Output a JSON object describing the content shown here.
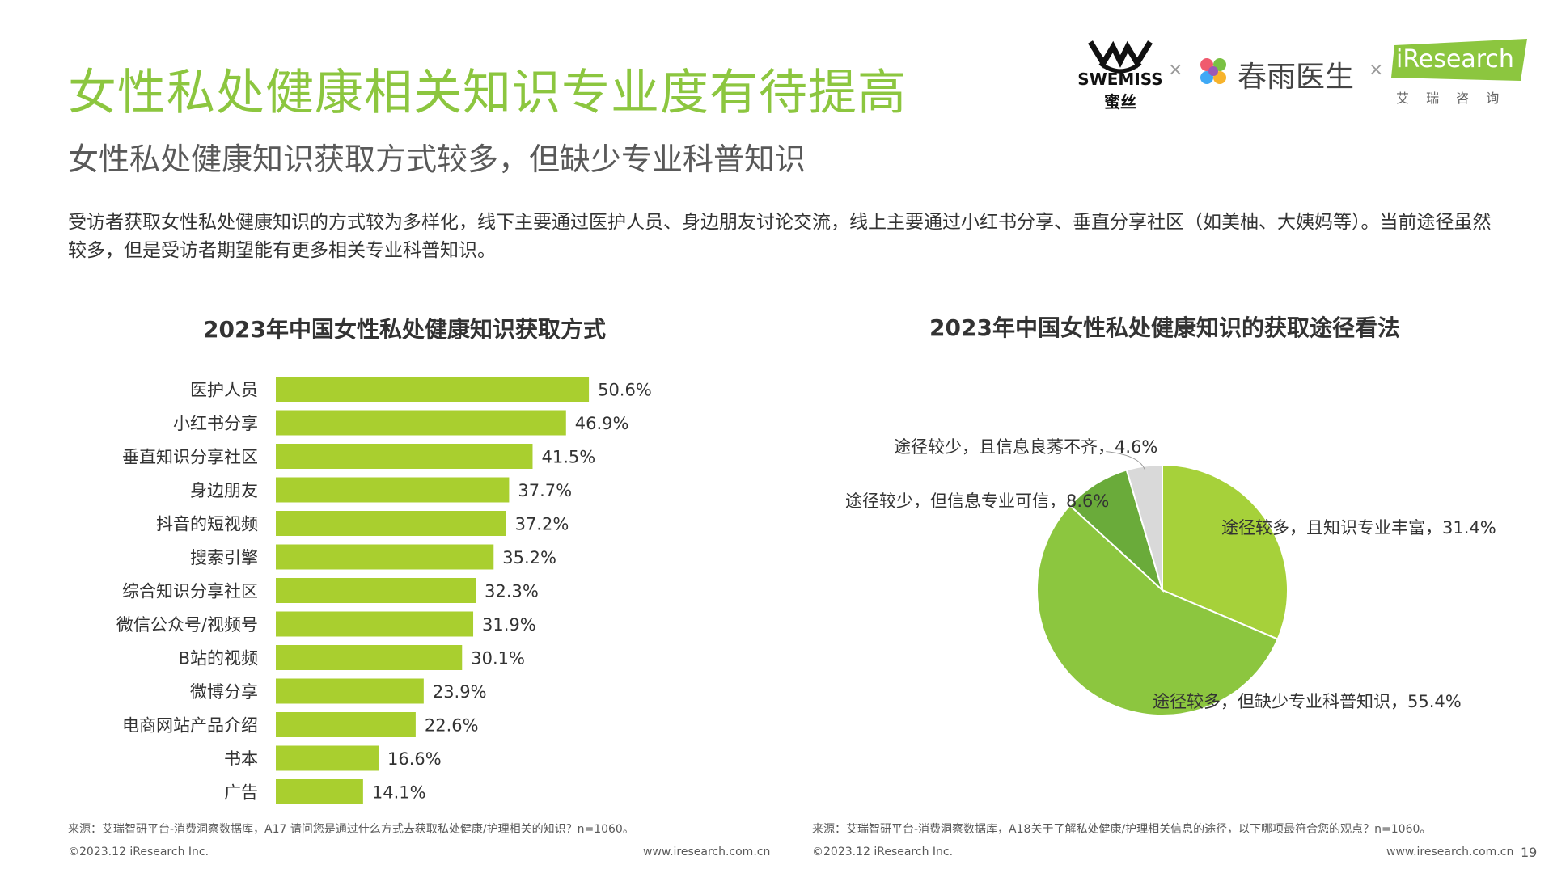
{
  "header": {
    "title": "女性私处健康相关知识专业度有待提高",
    "subtitle": "女性私处健康知识获取方式较多，但缺少专业科普知识",
    "description": "受访者获取女性私处健康知识的方式较为多样化，线下主要通过医护人员、身边朋友讨论交流，线上主要通过小红书分享、垂直分享社区（如美柚、大姨妈等）。当前途径虽然较多，但是受访者期望能有更多相关专业科普知识。"
  },
  "logos": {
    "swemiss_text": "SWEMISS",
    "swemiss_cn": "蜜丝",
    "chunyu_text": "春雨医生",
    "iresearch_text": "iResearch",
    "iresearch_cn": "艾 瑞 咨 询",
    "cross": "×"
  },
  "colors": {
    "accent": "#8cc63f",
    "bar": "#a9cf2f",
    "pie_light": "#a6d13a",
    "pie_main": "#8cc63f",
    "pie_dark": "#6aab3a",
    "pie_gray": "#d9d9d9"
  },
  "chart_data": [
    {
      "type": "bar",
      "orientation": "horizontal",
      "title": "2023年中国女性私处健康知识获取方式",
      "categories": [
        "医护人员",
        "小红书分享",
        "垂直知识分享社区",
        "身边朋友",
        "抖音的短视频",
        "搜索引擎",
        "综合知识分享社区",
        "微信公众号/视频号",
        "B站的视频",
        "微博分享",
        "电商网站产品介绍",
        "书本",
        "广告"
      ],
      "values": [
        50.6,
        46.9,
        41.5,
        37.7,
        37.2,
        35.2,
        32.3,
        31.9,
        30.1,
        23.9,
        22.6,
        16.6,
        14.1
      ],
      "labels": [
        "50.6%",
        "46.9%",
        "41.5%",
        "37.7%",
        "37.2%",
        "35.2%",
        "32.3%",
        "31.9%",
        "30.1%",
        "23.9%",
        "22.6%",
        "16.6%",
        "14.1%"
      ],
      "xlim": [
        0,
        100
      ]
    },
    {
      "type": "pie",
      "title": "2023年中国女性私处健康知识的获取途径看法",
      "slices": [
        {
          "label": "途径较多，且知识专业丰富，31.4%",
          "value": 31.4
        },
        {
          "label": "途径较多，但缺少专业科普知识，55.4%",
          "value": 55.4
        },
        {
          "label": "途径较少，但信息专业可信，8.6%",
          "value": 8.6
        },
        {
          "label": "途径较少，且信息良莠不齐，4.6%",
          "value": 4.6
        }
      ]
    }
  ],
  "footer": {
    "left_source": "来源：艾瑞智研平台-消费洞察数据库，A17 请问您是通过什么方式去获取私处健康/护理相关的知识？n=1060。",
    "right_source": "来源：艾瑞智研平台-消费洞察数据库，A18关于了解私处健康/护理相关信息的途径，以下哪项最符合您的观点？n=1060。",
    "left_copyright": "©2023.12 iResearch Inc.",
    "left_url": "www.iresearch.com.cn",
    "right_copyright": "©2023.12 iResearch Inc.",
    "right_url": "www.iresearch.com.cn",
    "page_number": "19"
  }
}
